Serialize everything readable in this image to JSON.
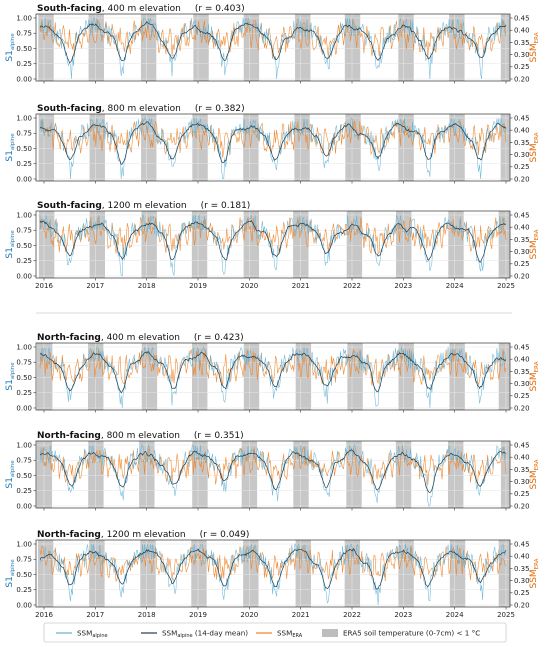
{
  "figure": {
    "colors": {
      "ssm_alpine": "#5fb0d6",
      "ssm_alpine_mean": "#1f3d4d",
      "ssm_era": "#f07f1f",
      "frozen": "#bdbdbd",
      "left_axis": "#1f77b4",
      "right_axis": "#e36c0a"
    },
    "left_axis_label": {
      "main": "S1",
      "sub": "alpine"
    },
    "right_axis_label": {
      "main": "SSM",
      "sub": "ERA"
    },
    "x_ticks": [
      "2016",
      "2017",
      "2018",
      "2019",
      "2020",
      "2021",
      "2022",
      "2023",
      "2024",
      "2025"
    ],
    "left_ticks": [
      "0.00",
      "0.25",
      "0.50",
      "0.75",
      "1.00"
    ],
    "right_ticks": [
      "0.20",
      "0.25",
      "0.30",
      "0.35",
      "0.40",
      "0.45"
    ],
    "legend": [
      {
        "main": "SSM",
        "sub": "alpine",
        "suffix": ""
      },
      {
        "main": "SSM",
        "sub": "alpine",
        "suffix": " (14-day mean)"
      },
      {
        "main": "SSM",
        "sub": "ERA",
        "suffix": ""
      },
      {
        "main": "ERA5 soil temperature (0-7cm) < 1 °C",
        "sub": "",
        "suffix": ""
      }
    ]
  },
  "chart_data": [
    {
      "type": "line",
      "aspect": "South-facing",
      "elevation_text": ", 400 m elevation",
      "r_text": "(r = 0.403)",
      "r": 0.403,
      "x_range": [
        "2016",
        "2025"
      ],
      "ylim_left": [
        0,
        1
      ],
      "ylim_right": [
        0.2,
        0.45
      ],
      "grid": true,
      "series": [
        {
          "name": "SSMalpine"
        },
        {
          "name": "SSMalpine (14-day mean)"
        },
        {
          "name": "SSMERA"
        }
      ]
    },
    {
      "type": "line",
      "aspect": "South-facing",
      "elevation_text": ", 800 m elevation",
      "r_text": "(r = 0.382)",
      "r": 0.382,
      "x_range": [
        "2016",
        "2025"
      ],
      "ylim_left": [
        0,
        1
      ],
      "ylim_right": [
        0.2,
        0.45
      ],
      "grid": true,
      "series": [
        {
          "name": "SSMalpine"
        },
        {
          "name": "SSMalpine (14-day mean)"
        },
        {
          "name": "SSMERA"
        }
      ]
    },
    {
      "type": "line",
      "aspect": "South-facing",
      "elevation_text": ", 1200 m elevation",
      "r_text": "(r = 0.181)",
      "r": 0.181,
      "x_range": [
        "2016",
        "2025"
      ],
      "ylim_left": [
        0,
        1
      ],
      "ylim_right": [
        0.2,
        0.45
      ],
      "grid": true,
      "series": [
        {
          "name": "SSMalpine"
        },
        {
          "name": "SSMalpine (14-day mean)"
        },
        {
          "name": "SSMERA"
        }
      ]
    },
    {
      "type": "line",
      "aspect": "North-facing",
      "elevation_text": ", 400 m elevation",
      "r_text": "(r = 0.423)",
      "r": 0.423,
      "x_range": [
        "2016",
        "2025"
      ],
      "ylim_left": [
        0,
        1
      ],
      "ylim_right": [
        0.2,
        0.45
      ],
      "grid": true,
      "series": [
        {
          "name": "SSMalpine"
        },
        {
          "name": "SSMalpine (14-day mean)"
        },
        {
          "name": "SSMERA"
        }
      ]
    },
    {
      "type": "line",
      "aspect": "North-facing",
      "elevation_text": ", 800 m elevation",
      "r_text": "(r = 0.351)",
      "r": 0.351,
      "x_range": [
        "2016",
        "2025"
      ],
      "ylim_left": [
        0,
        1
      ],
      "ylim_right": [
        0.2,
        0.45
      ],
      "grid": true,
      "series": [
        {
          "name": "SSMalpine"
        },
        {
          "name": "SSMalpine (14-day mean)"
        },
        {
          "name": "SSMERA"
        }
      ]
    },
    {
      "type": "line",
      "aspect": "North-facing",
      "elevation_text": ", 1200 m elevation",
      "r_text": "(r = 0.049)",
      "r": 0.049,
      "x_range": [
        "2016",
        "2025"
      ],
      "ylim_left": [
        0,
        1
      ],
      "ylim_right": [
        0.2,
        0.45
      ],
      "grid": true,
      "series": [
        {
          "name": "SSMalpine"
        },
        {
          "name": "SSMalpine (14-day mean)"
        },
        {
          "name": "SSMERA"
        }
      ]
    }
  ]
}
